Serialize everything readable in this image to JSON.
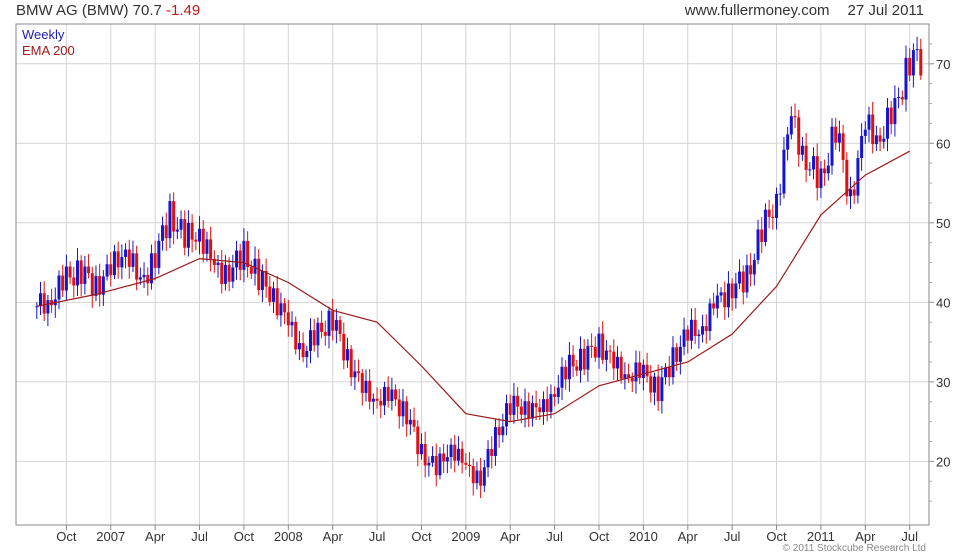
{
  "header": {
    "name": "BMW AG (BMW)",
    "price": "70.7",
    "change": "-1.49",
    "source": "www.fullermoney.com",
    "date": "27 Jul 2011"
  },
  "legend": {
    "period": "Weekly",
    "indicator": "EMA 200"
  },
  "copyright": "© 2011 Stockcube Research Ltd",
  "colors": {
    "up": "#1515d0",
    "down": "#e01010",
    "ema": "#9b1a1a",
    "grid": "#d4d4d4"
  },
  "chart_data": {
    "type": "line",
    "title": "BMW AG (BMW) 70.7 -1.49",
    "y_axis_side": "right",
    "ylim": [
      12,
      75
    ],
    "y_ticks": [
      20,
      30,
      40,
      50,
      60,
      70
    ],
    "x_ticks": [
      "Oct",
      "2007",
      "Apr",
      "Jul",
      "Oct",
      "2008",
      "Apr",
      "Jul",
      "Oct",
      "2009",
      "Apr",
      "Jul",
      "Oct",
      "2010",
      "Apr",
      "Jul",
      "Oct",
      "2011",
      "Apr",
      "Jul"
    ],
    "grid": true,
    "series": [
      {
        "name": "Weekly",
        "style": "candlestick",
        "x": [
          "2006-08",
          "2006-09",
          "2006-10",
          "2006-11",
          "2006-12",
          "2007-01",
          "2007-02",
          "2007-03",
          "2007-04",
          "2007-05",
          "2007-06",
          "2007-07",
          "2007-08",
          "2007-09",
          "2007-10",
          "2007-11",
          "2007-12",
          "2008-01",
          "2008-02",
          "2008-03",
          "2008-04",
          "2008-05",
          "2008-06",
          "2008-07",
          "2008-08",
          "2008-09",
          "2008-10",
          "2008-11",
          "2008-12",
          "2009-01",
          "2009-02",
          "2009-03",
          "2009-04",
          "2009-05",
          "2009-06",
          "2009-07",
          "2009-08",
          "2009-09",
          "2009-10",
          "2009-11",
          "2009-12",
          "2010-01",
          "2010-02",
          "2010-03",
          "2010-04",
          "2010-05",
          "2010-06",
          "2010-07",
          "2010-08",
          "2010-09",
          "2010-10",
          "2010-11",
          "2010-12",
          "2011-01",
          "2011-02",
          "2011-03",
          "2011-04",
          "2011-05",
          "2011-06",
          "2011-07"
        ],
        "values": [
          39.5,
          40.5,
          43,
          44,
          42,
          44,
          47,
          42,
          46,
          51,
          48,
          49,
          44,
          44,
          46,
          43,
          41,
          37,
          34,
          36,
          38,
          33,
          29,
          28,
          28,
          26,
          21,
          19,
          22,
          19,
          18,
          23,
          27,
          27,
          26,
          29,
          32,
          33,
          35,
          32,
          31,
          31,
          29,
          33,
          36,
          37,
          40,
          42,
          43,
          49,
          53,
          63,
          58,
          55,
          62,
          53,
          62,
          61,
          64,
          70.7
        ]
      },
      {
        "name": "EMA 200",
        "x": [
          "2006-08",
          "2006-12",
          "2007-04",
          "2007-07",
          "2007-10",
          "2008-01",
          "2008-04",
          "2008-07",
          "2008-10",
          "2009-01",
          "2009-04",
          "2009-07",
          "2009-10",
          "2010-01",
          "2010-04",
          "2010-07",
          "2010-10",
          "2011-01",
          "2011-04",
          "2011-07"
        ],
        "values": [
          39.5,
          41,
          43,
          45.5,
          45,
          42.5,
          39,
          37.5,
          32,
          26,
          25,
          26,
          29.5,
          31,
          32.5,
          36,
          42,
          51,
          56,
          59
        ]
      }
    ]
  }
}
